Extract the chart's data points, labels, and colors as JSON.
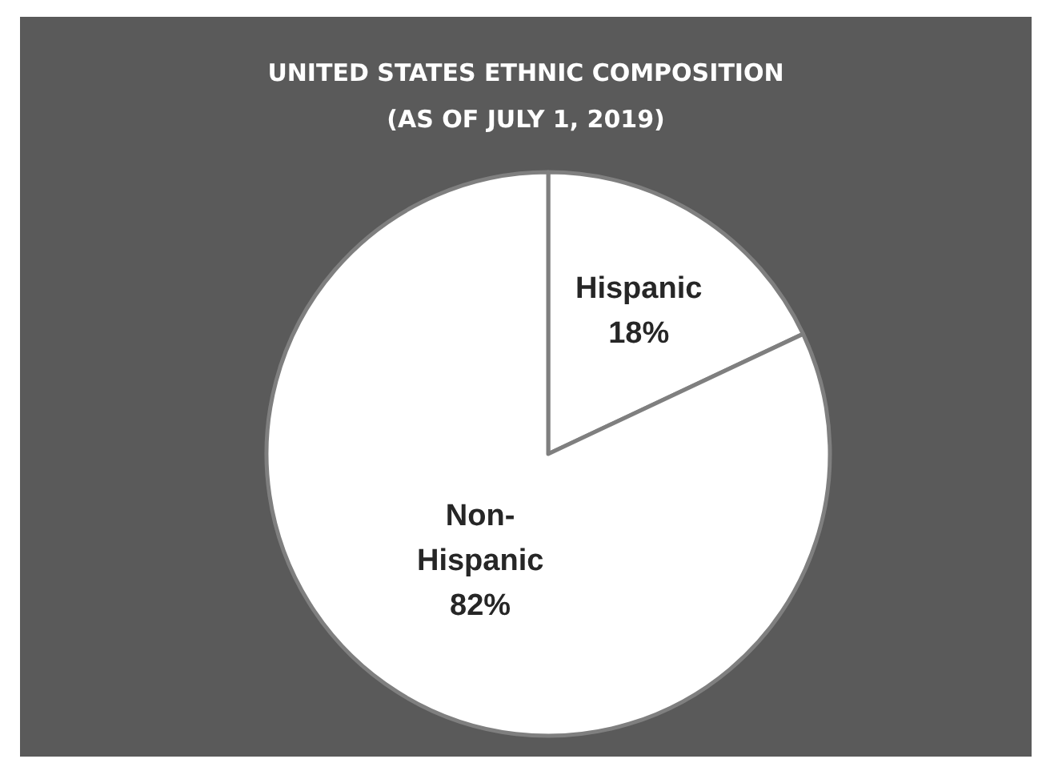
{
  "chart_data": {
    "type": "pie",
    "title": "UNITED STATES ETHNIC COMPOSITION",
    "subtitle": "(AS OF JULY 1, 2019)",
    "categories": [
      "Hispanic",
      "Non-Hispanic"
    ],
    "values": [
      18,
      82
    ],
    "value_labels": [
      "18%",
      "82%"
    ],
    "colors": [
      "#ffffff",
      "#ffffff"
    ]
  }
}
